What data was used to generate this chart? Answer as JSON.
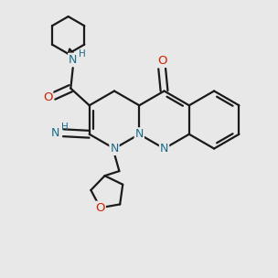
{
  "background_color": "#e8e8e8",
  "bond_color": "#1a1a1a",
  "nitrogen_color": "#1a6b8a",
  "oxygen_color": "#cc2200",
  "carbon_color": "#1a1a1a",
  "line_width": 1.6,
  "figsize": [
    3.0,
    3.0
  ],
  "dpi": 100
}
